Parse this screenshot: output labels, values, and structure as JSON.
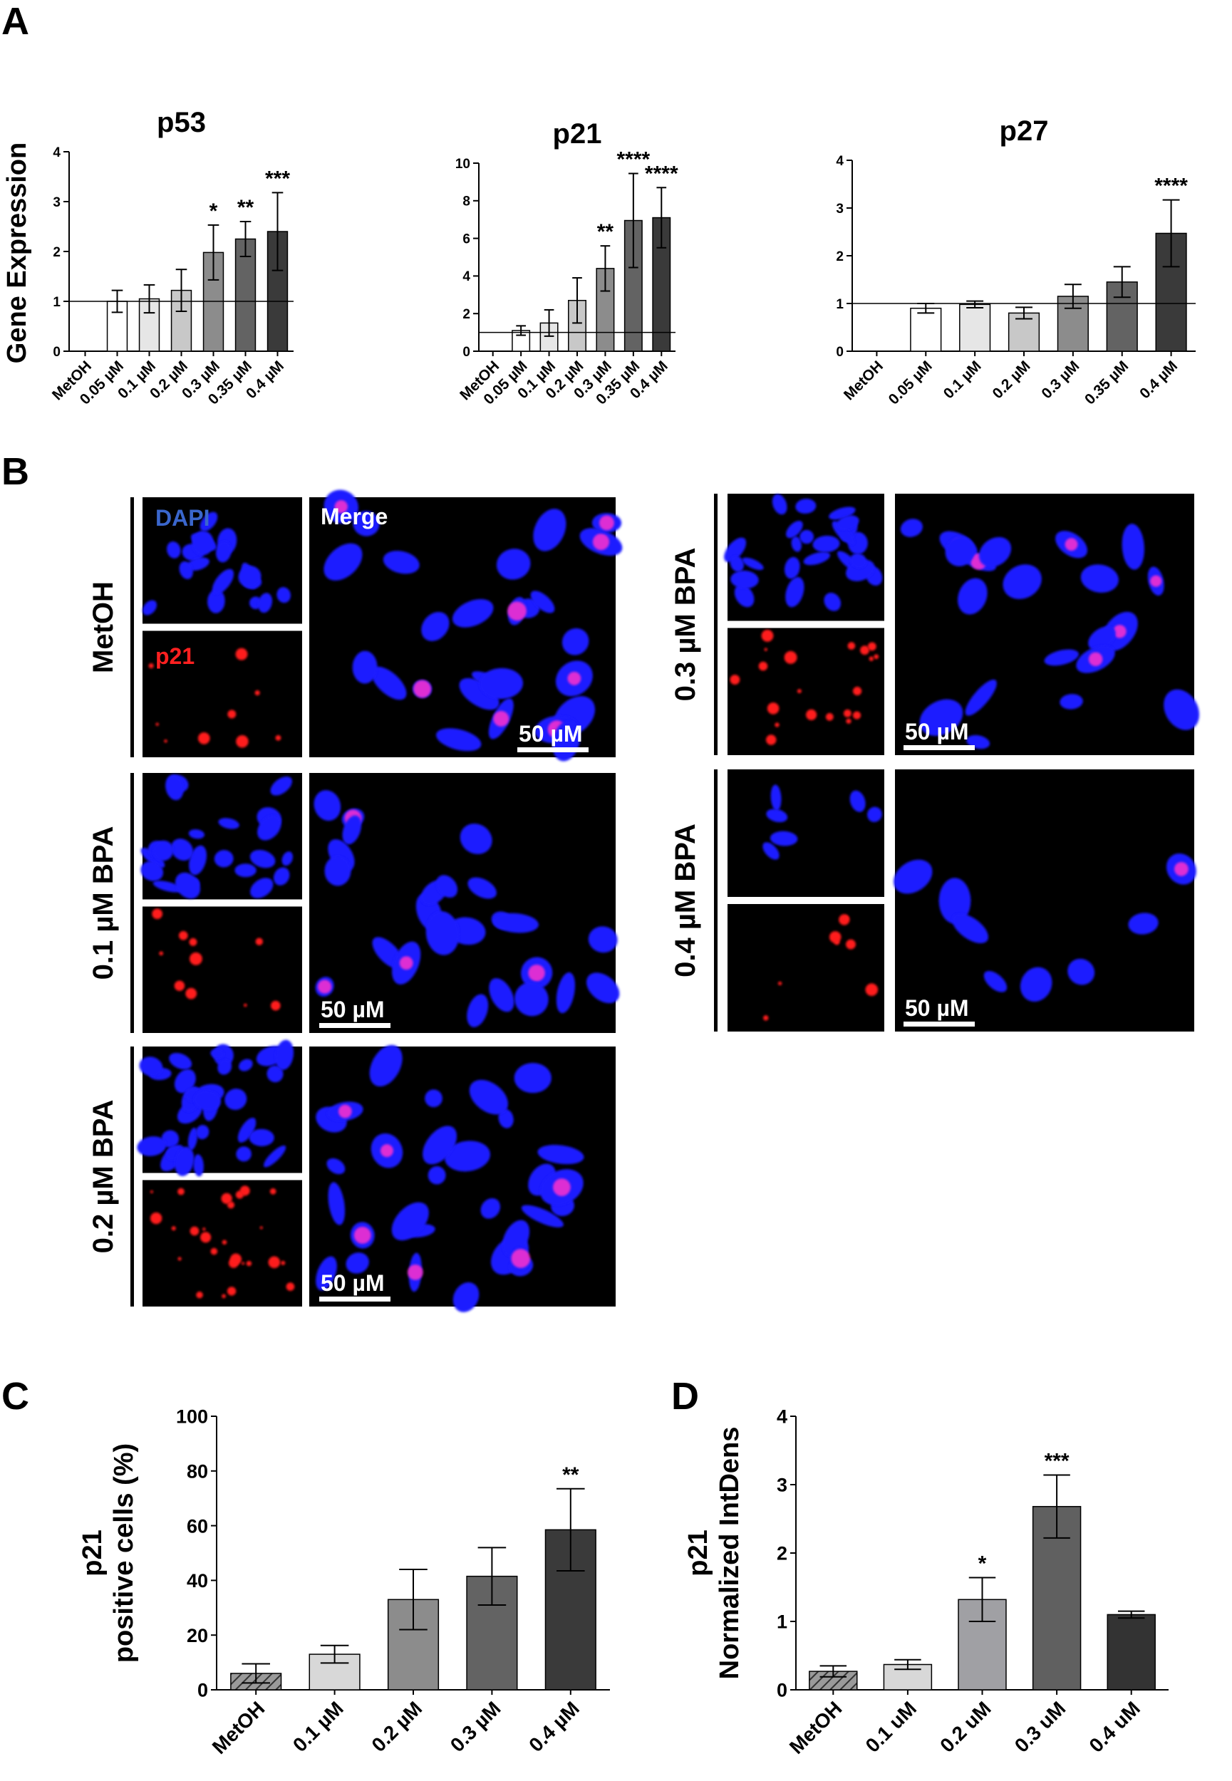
{
  "panels": {
    "A": "A",
    "B": "B",
    "C": "C",
    "D": "D"
  },
  "panel_a": {
    "ylabel": "Gene Expression"
  },
  "panel_b": {
    "dapi_label": "DAPI",
    "p21_label": "p21",
    "merge_label": "Merge",
    "scale_label": "50 µM",
    "rows": [
      {
        "label": "MetOH"
      },
      {
        "label": "0.1 µM BPA"
      },
      {
        "label": "0.2 µM BPA"
      },
      {
        "label": "0.3 µM BPA"
      },
      {
        "label": "0.4 µM BPA"
      }
    ],
    "colors": {
      "dapi": "#1a1aff",
      "p21": "#ff1a1a",
      "background": "#000000"
    }
  },
  "chart_data": [
    {
      "id": "p53",
      "type": "bar",
      "title": "p53",
      "ylabel": "Gene Expression",
      "categories": [
        "MetOH",
        "0.05 µM",
        "0.1 µM",
        "0.2 µM",
        "0.3 µM",
        "0.35 µM",
        "0.4 µM"
      ],
      "values": [
        0,
        1.0,
        1.05,
        1.22,
        1.98,
        2.25,
        2.4
      ],
      "errors": [
        0,
        0.22,
        0.28,
        0.42,
        0.55,
        0.35,
        0.78
      ],
      "significance": [
        "",
        "",
        "",
        "",
        "*",
        "**",
        "***"
      ],
      "ylim": [
        0,
        4
      ],
      "yticks": [
        0,
        1,
        2,
        3,
        4
      ],
      "reference_line": 1,
      "colors": [
        "#ffffff",
        "#ffffff",
        "#e6e6e6",
        "#c8c8c8",
        "#8c8c8c",
        "#636363",
        "#3a3a3a"
      ]
    },
    {
      "id": "p21",
      "type": "bar",
      "title": "p21",
      "categories": [
        "MetOH",
        "0.05 µM",
        "0.1 µM",
        "0.2 µM",
        "0.3 µM",
        "0.35 µM",
        "0.4 µM"
      ],
      "values": [
        0,
        1.1,
        1.5,
        2.7,
        4.4,
        6.95,
        7.1
      ],
      "errors": [
        0,
        0.25,
        0.7,
        1.2,
        1.2,
        2.5,
        1.6
      ],
      "significance": [
        "",
        "",
        "",
        "",
        "**",
        "****",
        "****"
      ],
      "ylim": [
        0,
        10
      ],
      "yticks": [
        0,
        2,
        4,
        6,
        8,
        10
      ],
      "reference_line": 1,
      "colors": [
        "#ffffff",
        "#ffffff",
        "#e6e6e6",
        "#c8c8c8",
        "#8c8c8c",
        "#636363",
        "#3a3a3a"
      ]
    },
    {
      "id": "p27",
      "type": "bar",
      "title": "p27",
      "categories": [
        "MetOH",
        "0.05 µM",
        "0.1 µM",
        "0.2 µM",
        "0.3 µM",
        "0.35 µM",
        "0.4 µM"
      ],
      "values": [
        0,
        0.9,
        0.98,
        0.8,
        1.15,
        1.45,
        2.47
      ],
      "errors": [
        0,
        0.1,
        0.07,
        0.12,
        0.25,
        0.32,
        0.7
      ],
      "significance": [
        "",
        "",
        "",
        "",
        "",
        "",
        "****"
      ],
      "ylim": [
        0,
        4
      ],
      "yticks": [
        0,
        1,
        2,
        3,
        4
      ],
      "reference_line": 1,
      "colors": [
        "#ffffff",
        "#ffffff",
        "#e6e6e6",
        "#c8c8c8",
        "#8c8c8c",
        "#636363",
        "#3a3a3a"
      ]
    },
    {
      "id": "C",
      "type": "bar",
      "ylabel": [
        "p21",
        "positive cells (%)"
      ],
      "categories": [
        "MetOH",
        "0.1 µM",
        "0.2 µM",
        "0.3 µM",
        "0.4 µM"
      ],
      "values": [
        6,
        13,
        33,
        41.5,
        58.5
      ],
      "errors": [
        3.5,
        3.2,
        11,
        10.5,
        15
      ],
      "significance": [
        "",
        "",
        "",
        "",
        "**"
      ],
      "ylim": [
        0,
        100
      ],
      "yticks": [
        0,
        20,
        40,
        60,
        80,
        100
      ],
      "colors": [
        "#8a8a8a",
        "#d8d8d8",
        "#8c8c8c",
        "#636363",
        "#3a3a3a"
      ],
      "hatched_first": true
    },
    {
      "id": "D",
      "type": "bar",
      "ylabel": [
        "p21",
        "Normalized IntDens"
      ],
      "categories": [
        "MetOH",
        "0.1 uM",
        "0.2 uM",
        "0.3 uM",
        "0.4 uM"
      ],
      "values": [
        0.27,
        0.37,
        1.32,
        2.68,
        1.1
      ],
      "errors": [
        0.08,
        0.07,
        0.32,
        0.46,
        0.05
      ],
      "significance": [
        "",
        "",
        "*",
        "***",
        ""
      ],
      "ylim": [
        0,
        4
      ],
      "yticks": [
        0,
        1,
        2,
        3,
        4
      ],
      "colors": [
        "#8a8a8a",
        "#d8d8d8",
        "#a0a0a4",
        "#606060",
        "#333333"
      ],
      "hatched_first": true
    }
  ]
}
